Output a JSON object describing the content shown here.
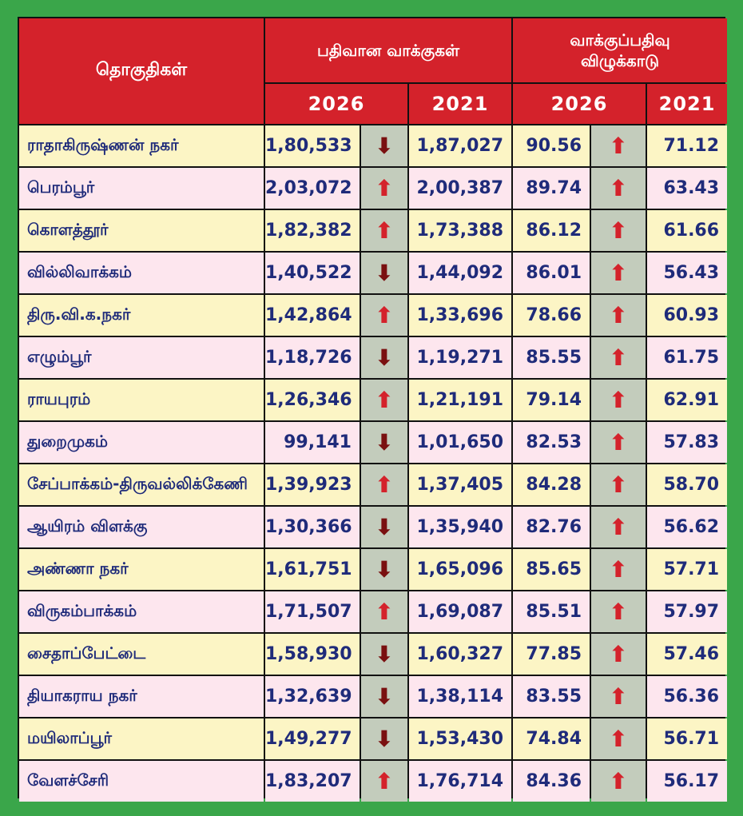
{
  "header": {
    "constituency": "தொகுதிகள்",
    "registered_votes": "பதிவான வாக்குகள்",
    "turnout_line1": "வாக்குப்பதிவு",
    "turnout_line2": "விழுக்காடு",
    "year_2026": "2026",
    "year_2021": "2021"
  },
  "colors": {
    "background": "#3aa64a",
    "header": "#d4222b",
    "row_odd": "#fcf5c5",
    "row_even": "#fde6ee",
    "arrow_cell": "#c3ccbc",
    "text": "#1f2b7a"
  },
  "icons": {
    "up": "up-arrow-icon",
    "down": "down-arrow-icon"
  },
  "rows": [
    {
      "name": "ராதாகிருஷ்ணன் நகர்",
      "votes_2026": "1,80,533",
      "votes_trend": "down",
      "votes_2021": "1,87,027",
      "turnout_2026": "90.56",
      "turnout_trend": "up",
      "turnout_2021": "71.12"
    },
    {
      "name": "பெரம்பூர்",
      "votes_2026": "2,03,072",
      "votes_trend": "up",
      "votes_2021": "2,00,387",
      "turnout_2026": "89.74",
      "turnout_trend": "up",
      "turnout_2021": "63.43"
    },
    {
      "name": "கொளத்தூர்",
      "votes_2026": "1,82,382",
      "votes_trend": "up",
      "votes_2021": "1,73,388",
      "turnout_2026": "86.12",
      "turnout_trend": "up",
      "turnout_2021": "61.66"
    },
    {
      "name": "வில்லிவாக்கம்",
      "votes_2026": "1,40,522",
      "votes_trend": "down",
      "votes_2021": "1,44,092",
      "turnout_2026": "86.01",
      "turnout_trend": "up",
      "turnout_2021": "56.43"
    },
    {
      "name": "திரு.வி.க.நகர்",
      "votes_2026": "1,42,864",
      "votes_trend": "up",
      "votes_2021": "1,33,696",
      "turnout_2026": "78.66",
      "turnout_trend": "up",
      "turnout_2021": "60.93"
    },
    {
      "name": "எழும்பூர்",
      "votes_2026": "1,18,726",
      "votes_trend": "down",
      "votes_2021": "1,19,271",
      "turnout_2026": "85.55",
      "turnout_trend": "up",
      "turnout_2021": "61.75"
    },
    {
      "name": "ராயபுரம்",
      "votes_2026": "1,26,346",
      "votes_trend": "up",
      "votes_2021": "1,21,191",
      "turnout_2026": "79.14",
      "turnout_trend": "up",
      "turnout_2021": "62.91"
    },
    {
      "name": "துறைமுகம்",
      "votes_2026": "99,141",
      "votes_trend": "down",
      "votes_2021": "1,01,650",
      "turnout_2026": "82.53",
      "turnout_trend": "up",
      "turnout_2021": "57.83"
    },
    {
      "name": "சேப்பாக்கம்-திருவல்லிக்கேணி",
      "votes_2026": "1,39,923",
      "votes_trend": "up",
      "votes_2021": "1,37,405",
      "turnout_2026": "84.28",
      "turnout_trend": "up",
      "turnout_2021": "58.70"
    },
    {
      "name": "ஆயிரம் விளக்கு",
      "votes_2026": "1,30,366",
      "votes_trend": "down",
      "votes_2021": "1,35,940",
      "turnout_2026": "82.76",
      "turnout_trend": "up",
      "turnout_2021": "56.62"
    },
    {
      "name": "அண்ணா நகர்",
      "votes_2026": "1,61,751",
      "votes_trend": "down",
      "votes_2021": "1,65,096",
      "turnout_2026": "85.65",
      "turnout_trend": "up",
      "turnout_2021": "57.71"
    },
    {
      "name": "விருகம்பாக்கம்",
      "votes_2026": "1,71,507",
      "votes_trend": "up",
      "votes_2021": "1,69,087",
      "turnout_2026": "85.51",
      "turnout_trend": "up",
      "turnout_2021": "57.97"
    },
    {
      "name": "சைதாப்பேட்டை",
      "votes_2026": "1,58,930",
      "votes_trend": "down",
      "votes_2021": "1,60,327",
      "turnout_2026": "77.85",
      "turnout_trend": "up",
      "turnout_2021": "57.46"
    },
    {
      "name": "தியாகராய நகர்",
      "votes_2026": "1,32,639",
      "votes_trend": "down",
      "votes_2021": "1,38,114",
      "turnout_2026": "83.55",
      "turnout_trend": "up",
      "turnout_2021": "56.36"
    },
    {
      "name": "மயிலாப்பூர்",
      "votes_2026": "1,49,277",
      "votes_trend": "down",
      "votes_2021": "1,53,430",
      "turnout_2026": "74.84",
      "turnout_trend": "up",
      "turnout_2021": "56.71"
    },
    {
      "name": "வேளச்சேரி",
      "votes_2026": "1,83,207",
      "votes_trend": "up",
      "votes_2021": "1,76,714",
      "turnout_2026": "84.36",
      "turnout_trend": "up",
      "turnout_2021": "56.17"
    }
  ]
}
